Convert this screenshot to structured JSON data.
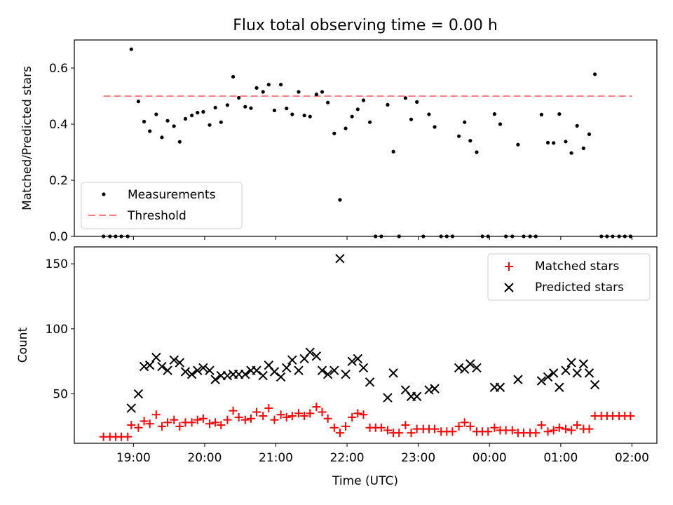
{
  "chart_data": [
    {
      "type": "scatter",
      "title": "Flux total observing time = 0.00 h",
      "ylabel": "Matched/Predicted stars",
      "xlabel": "",
      "x_unit": "hours (UTC, values past 24 are after midnight)",
      "xlim": [
        18.17,
        26.35
      ],
      "ylim": [
        0,
        0.7
      ],
      "yticks": [
        0.0,
        0.2,
        0.4,
        0.6
      ],
      "ytick_labels": [
        "0.0",
        "0.2",
        "0.4",
        "0.6"
      ],
      "grid": false,
      "legend_position": "lower-left",
      "threshold": {
        "name": "Threshold",
        "y": 0.5,
        "x_range": [
          18.58,
          26.0
        ],
        "color": "#ff7f7f"
      },
      "series": [
        {
          "name": "Measurements",
          "color": "#000000",
          "points": [
            [
              18.58,
              0
            ],
            [
              18.67,
              0
            ],
            [
              18.75,
              0
            ],
            [
              18.83,
              0
            ],
            [
              18.92,
              0
            ],
            [
              18.97,
              0.667
            ],
            [
              19.07,
              0.481
            ],
            [
              19.15,
              0.409
            ],
            [
              19.23,
              0.375
            ],
            [
              19.32,
              0.435
            ],
            [
              19.4,
              0.353
            ],
            [
              19.48,
              0.412
            ],
            [
              19.57,
              0.393
            ],
            [
              19.65,
              0.337
            ],
            [
              19.73,
              0.419
            ],
            [
              19.82,
              0.431
            ],
            [
              19.9,
              0.441
            ],
            [
              19.98,
              0.444
            ],
            [
              20.07,
              0.397
            ],
            [
              20.15,
              0.459
            ],
            [
              20.23,
              0.407
            ],
            [
              20.32,
              0.468
            ],
            [
              20.4,
              0.569
            ],
            [
              20.48,
              0.494
            ],
            [
              20.57,
              0.462
            ],
            [
              20.65,
              0.457
            ],
            [
              20.73,
              0.529
            ],
            [
              20.82,
              0.515
            ],
            [
              20.9,
              0.541
            ],
            [
              20.98,
              0.449
            ],
            [
              21.07,
              0.541
            ],
            [
              21.15,
              0.456
            ],
            [
              21.23,
              0.435
            ],
            [
              21.32,
              0.515
            ],
            [
              21.4,
              0.431
            ],
            [
              21.48,
              0.427
            ],
            [
              21.57,
              0.506
            ],
            [
              21.65,
              0.515
            ],
            [
              21.73,
              0.477
            ],
            [
              21.82,
              0.367
            ],
            [
              21.9,
              0.13
            ],
            [
              21.98,
              0.385
            ],
            [
              22.07,
              0.427
            ],
            [
              22.15,
              0.453
            ],
            [
              22.23,
              0.485
            ],
            [
              22.32,
              0.407
            ],
            [
              22.4,
              0
            ],
            [
              22.48,
              0
            ],
            [
              22.57,
              0.469
            ],
            [
              22.65,
              0.302
            ],
            [
              22.73,
              0
            ],
            [
              22.82,
              0.493
            ],
            [
              22.9,
              0.417
            ],
            [
              22.98,
              0.479
            ],
            [
              23.07,
              0
            ],
            [
              23.15,
              0.435
            ],
            [
              23.23,
              0.39
            ],
            [
              23.32,
              0
            ],
            [
              23.4,
              0
            ],
            [
              23.48,
              0
            ],
            [
              23.57,
              0.357
            ],
            [
              23.65,
              0.407
            ],
            [
              23.73,
              0.341
            ],
            [
              23.82,
              0.3
            ],
            [
              23.9,
              0
            ],
            [
              23.98,
              0
            ],
            [
              24.07,
              0.436
            ],
            [
              24.15,
              0.4
            ],
            [
              24.23,
              0
            ],
            [
              24.32,
              0
            ],
            [
              24.4,
              0.327
            ],
            [
              24.48,
              0
            ],
            [
              24.57,
              0
            ],
            [
              24.65,
              0
            ],
            [
              24.73,
              0.434
            ],
            [
              24.82,
              0.334
            ],
            [
              24.9,
              0.333
            ],
            [
              24.98,
              0.436
            ],
            [
              25.07,
              0.338
            ],
            [
              25.15,
              0.297
            ],
            [
              25.23,
              0.394
            ],
            [
              25.32,
              0.314
            ],
            [
              25.4,
              0.364
            ],
            [
              25.48,
              0.578
            ],
            [
              25.57,
              0
            ],
            [
              25.65,
              0
            ],
            [
              25.73,
              0
            ],
            [
              25.82,
              0
            ],
            [
              25.9,
              0
            ],
            [
              25.98,
              0
            ]
          ]
        }
      ]
    },
    {
      "type": "scatter",
      "title": "",
      "xlabel": "Time (UTC)",
      "ylabel": "Count",
      "x_unit": "hours (UTC, values past 24 are after midnight)",
      "xlim": [
        18.17,
        26.35
      ],
      "ylim": [
        12,
        163
      ],
      "xticks": [
        19,
        20,
        21,
        22,
        23,
        24,
        25,
        26
      ],
      "xtick_labels": [
        "19:00",
        "20:00",
        "21:00",
        "22:00",
        "23:00",
        "00:00",
        "01:00",
        "02:00"
      ],
      "yticks": [
        50,
        100,
        150
      ],
      "ytick_labels": [
        "50",
        "100",
        "150"
      ],
      "grid": false,
      "legend_position": "upper-right",
      "series": [
        {
          "name": "Matched stars",
          "marker": "plus",
          "color": "#ff0000",
          "points": [
            [
              18.58,
              17
            ],
            [
              18.67,
              17
            ],
            [
              18.75,
              17
            ],
            [
              18.83,
              17
            ],
            [
              18.92,
              17
            ],
            [
              18.97,
              26
            ],
            [
              19.07,
              24
            ],
            [
              19.15,
              29
            ],
            [
              19.23,
              27
            ],
            [
              19.32,
              34
            ],
            [
              19.4,
              25
            ],
            [
              19.48,
              28
            ],
            [
              19.57,
              30
            ],
            [
              19.65,
              25
            ],
            [
              19.73,
              28
            ],
            [
              19.82,
              28
            ],
            [
              19.9,
              30
            ],
            [
              19.98,
              31
            ],
            [
              20.07,
              27
            ],
            [
              20.15,
              28
            ],
            [
              20.23,
              26
            ],
            [
              20.32,
              30
            ],
            [
              20.4,
              37
            ],
            [
              20.48,
              32
            ],
            [
              20.57,
              30
            ],
            [
              20.65,
              31
            ],
            [
              20.73,
              36
            ],
            [
              20.82,
              33
            ],
            [
              20.9,
              39
            ],
            [
              20.98,
              30
            ],
            [
              21.07,
              34
            ],
            [
              21.15,
              32
            ],
            [
              21.23,
              33
            ],
            [
              21.32,
              35
            ],
            [
              21.4,
              33
            ],
            [
              21.48,
              35
            ],
            [
              21.57,
              40
            ],
            [
              21.65,
              36
            ],
            [
              21.73,
              31
            ],
            [
              21.82,
              24
            ],
            [
              21.9,
              20
            ],
            [
              21.98,
              25
            ],
            [
              22.07,
              32
            ],
            [
              22.15,
              35
            ],
            [
              22.23,
              34
            ],
            [
              22.32,
              24
            ],
            [
              22.4,
              24
            ],
            [
              22.48,
              24
            ],
            [
              22.57,
              22
            ],
            [
              22.65,
              20
            ],
            [
              22.73,
              20
            ],
            [
              22.82,
              26
            ],
            [
              22.9,
              20
            ],
            [
              22.98,
              23
            ],
            [
              23.07,
              23
            ],
            [
              23.15,
              23
            ],
            [
              23.23,
              23
            ],
            [
              23.32,
              21
            ],
            [
              23.4,
              21
            ],
            [
              23.48,
              21
            ],
            [
              23.57,
              25
            ],
            [
              23.65,
              28
            ],
            [
              23.73,
              25
            ],
            [
              23.82,
              21
            ],
            [
              23.9,
              21
            ],
            [
              23.98,
              21
            ],
            [
              24.07,
              24
            ],
            [
              24.15,
              22
            ],
            [
              24.23,
              22
            ],
            [
              24.32,
              22
            ],
            [
              24.4,
              20
            ],
            [
              24.48,
              20
            ],
            [
              24.57,
              20
            ],
            [
              24.65,
              20
            ],
            [
              24.73,
              26
            ],
            [
              24.82,
              21
            ],
            [
              24.9,
              22
            ],
            [
              24.98,
              24
            ],
            [
              25.07,
              23
            ],
            [
              25.15,
              22
            ],
            [
              25.23,
              26
            ],
            [
              25.32,
              23
            ],
            [
              25.4,
              23
            ],
            [
              25.48,
              33
            ],
            [
              25.57,
              33
            ],
            [
              25.65,
              33
            ],
            [
              25.73,
              33
            ],
            [
              25.82,
              33
            ],
            [
              25.9,
              33
            ],
            [
              25.98,
              33
            ]
          ]
        },
        {
          "name": "Predicted stars",
          "marker": "x",
          "color": "#000000",
          "points": [
            [
              18.97,
              39
            ],
            [
              19.07,
              50
            ],
            [
              19.15,
              71
            ],
            [
              19.23,
              72
            ],
            [
              19.32,
              78
            ],
            [
              19.4,
              71
            ],
            [
              19.48,
              68
            ],
            [
              19.57,
              76
            ],
            [
              19.65,
              74
            ],
            [
              19.73,
              67
            ],
            [
              19.82,
              65
            ],
            [
              19.9,
              68
            ],
            [
              19.98,
              70
            ],
            [
              20.07,
              68
            ],
            [
              20.15,
              61
            ],
            [
              20.23,
              64
            ],
            [
              20.32,
              64
            ],
            [
              20.4,
              65
            ],
            [
              20.48,
              65
            ],
            [
              20.57,
              65
            ],
            [
              20.65,
              68
            ],
            [
              20.73,
              68
            ],
            [
              20.82,
              64
            ],
            [
              20.9,
              72
            ],
            [
              20.98,
              67
            ],
            [
              21.07,
              63
            ],
            [
              21.15,
              70
            ],
            [
              21.23,
              76
            ],
            [
              21.32,
              68
            ],
            [
              21.4,
              77
            ],
            [
              21.48,
              82
            ],
            [
              21.57,
              79
            ],
            [
              21.65,
              68
            ],
            [
              21.73,
              65
            ],
            [
              21.82,
              68
            ],
            [
              21.9,
              154
            ],
            [
              21.98,
              65
            ],
            [
              22.07,
              75
            ],
            [
              22.15,
              77
            ],
            [
              22.23,
              70
            ],
            [
              22.32,
              59
            ],
            [
              22.57,
              47
            ],
            [
              22.65,
              66
            ],
            [
              22.82,
              53
            ],
            [
              22.9,
              48
            ],
            [
              22.98,
              48
            ],
            [
              23.15,
              53
            ],
            [
              23.23,
              54
            ],
            [
              23.57,
              70
            ],
            [
              23.65,
              69
            ],
            [
              23.73,
              73
            ],
            [
              23.82,
              70
            ],
            [
              24.07,
              55
            ],
            [
              24.15,
              55
            ],
            [
              24.4,
              61
            ],
            [
              24.73,
              60
            ],
            [
              24.82,
              63
            ],
            [
              24.9,
              66
            ],
            [
              24.98,
              55
            ],
            [
              25.07,
              68
            ],
            [
              25.15,
              74
            ],
            [
              25.23,
              66
            ],
            [
              25.32,
              73
            ],
            [
              25.4,
              66
            ],
            [
              25.48,
              57
            ]
          ]
        }
      ]
    }
  ],
  "colors": {
    "matched": "#ff0000",
    "predicted": "#000000",
    "measurements": "#000000",
    "threshold": "#ff7f7f"
  }
}
